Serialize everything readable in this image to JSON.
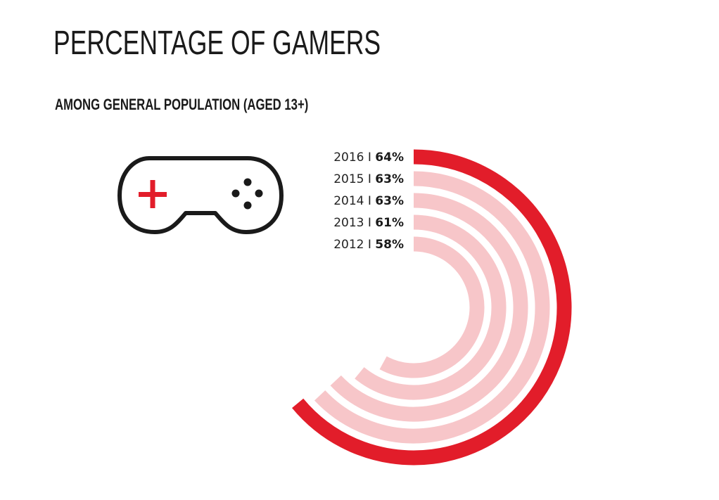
{
  "header": {
    "title": "PERCENTAGE OF GAMERS",
    "subtitle": "AMONG GENERAL POPULATION (AGED 13+)"
  },
  "icon": "game-controller-icon",
  "colors": {
    "highlight": "#e21d2a",
    "muted": "#f7c6c9",
    "text": "#1a1a1a"
  },
  "chart_data": {
    "type": "radial-bar",
    "title": "PERCENTAGE OF GAMERS",
    "subtitle": "AMONG GENERAL POPULATION (AGED 13+)",
    "unit": "%",
    "separator": "I",
    "series": [
      {
        "year": "2016",
        "value": 64,
        "label": "64%",
        "highlight": true
      },
      {
        "year": "2015",
        "value": 63,
        "label": "63%",
        "highlight": false
      },
      {
        "year": "2014",
        "value": 63,
        "label": "63%",
        "highlight": false
      },
      {
        "year": "2013",
        "value": 61,
        "label": "61%",
        "highlight": false
      },
      {
        "year": "2012",
        "value": 58,
        "label": "58%",
        "highlight": false
      }
    ]
  }
}
